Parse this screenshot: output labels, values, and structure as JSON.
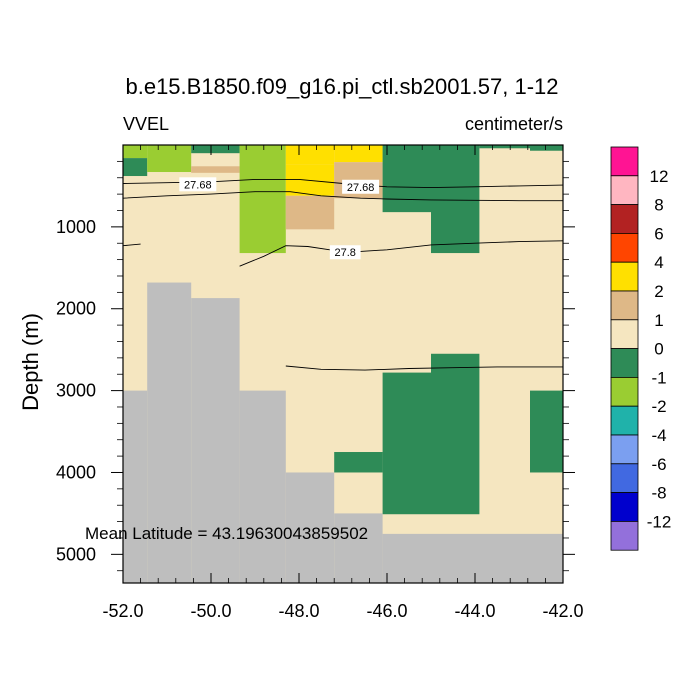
{
  "chart_data": {
    "type": "heatmap",
    "title": "b.e15.B1850.f09_g16.pi_ctl.sb2001.57, 1-12",
    "left_label": "VVEL",
    "right_label": "centimeter/s",
    "xlabel": "",
    "ylabel": "Depth (m)",
    "xlim": [
      -52.0,
      -42.0
    ],
    "ylim": [
      5350,
      0
    ],
    "x_ticks": [
      -52,
      -50,
      -48,
      -46,
      -44,
      -42
    ],
    "x_tick_labels": [
      "-52.0",
      "-50.0",
      "-48.0",
      "-46.0",
      "-44.0",
      "-42.0"
    ],
    "y_ticks": [
      1000,
      2000,
      3000,
      4000,
      5000
    ],
    "y_tick_labels": [
      "1000",
      "2000",
      "3000",
      "4000",
      "5000"
    ],
    "annotation": "Mean Latitude = 43.19630043859502",
    "colorbar": {
      "labels": [
        "12",
        "8",
        "6",
        "4",
        "2",
        "1",
        "0",
        "-1",
        "-2",
        "-4",
        "-6",
        "-8",
        "-12"
      ],
      "colors": [
        "#ff1493",
        "#ffb6c1",
        "#b22222",
        "#ff4500",
        "#ffe000",
        "#deb887",
        "#f5e6c0",
        "#2e8b57",
        "#9acd32",
        "#20b2aa",
        "#7b9ff0",
        "#4169e1",
        "#0000cd",
        "#9370db"
      ]
    },
    "colors": {
      "background": "#f5e6c0",
      "land": "#bebebe"
    },
    "land": [
      {
        "x": [
          -52.0,
          -51.45
        ],
        "top": 3000
      },
      {
        "x": [
          -51.45,
          -50.45
        ],
        "top": 1680
      },
      {
        "x": [
          -50.45,
          -49.35
        ],
        "top": 1870
      },
      {
        "x": [
          -49.35,
          -48.3
        ],
        "top": 3000
      },
      {
        "x": [
          -48.3,
          -47.2
        ],
        "top": 4000
      },
      {
        "x": [
          -47.2,
          -46.1
        ],
        "top": 4500
      },
      {
        "x": [
          -46.1,
          -42.0
        ],
        "top": 4750
      }
    ],
    "cells": [
      {
        "x": [
          -52.0,
          -51.45
        ],
        "y": [
          0,
          160
        ],
        "v": -2
      },
      {
        "x": [
          -52.0,
          -51.45
        ],
        "y": [
          160,
          380
        ],
        "v": -1
      },
      {
        "x": [
          -52.0,
          -51.45
        ],
        "y": [
          380,
          650
        ],
        "v": 0.5
      },
      {
        "x": [
          -51.45,
          -50.45
        ],
        "y": [
          0,
          330
        ],
        "v": -2
      },
      {
        "x": [
          -50.45,
          -49.35
        ],
        "y": [
          0,
          100
        ],
        "v": -1
      },
      {
        "x": [
          -50.45,
          -49.35
        ],
        "y": [
          260,
          340
        ],
        "v": 1.5
      },
      {
        "x": [
          -49.35,
          -48.3
        ],
        "y": [
          0,
          1320
        ],
        "v": -1.5
      },
      {
        "x": [
          -48.3,
          -47.2
        ],
        "y": [
          0,
          240
        ],
        "v": 3
      },
      {
        "x": [
          -48.3,
          -47.2
        ],
        "y": [
          240,
          620
        ],
        "v": 2.5
      },
      {
        "x": [
          -48.3,
          -47.2
        ],
        "y": [
          620,
          1030
        ],
        "v": 1.5
      },
      {
        "x": [
          -47.2,
          -46.1
        ],
        "y": [
          0,
          210
        ],
        "v": 2.5
      },
      {
        "x": [
          -47.2,
          -46.1
        ],
        "y": [
          210,
          650
        ],
        "v": 1.5
      },
      {
        "x": [
          -46.1,
          -45.0
        ],
        "y": [
          0,
          820
        ],
        "v": -0.5
      },
      {
        "x": [
          -45.0,
          -43.9
        ],
        "y": [
          0,
          1320
        ],
        "v": -0.5
      },
      {
        "x": [
          -43.9,
          -42.75
        ],
        "y": [
          0,
          40
        ],
        "v": -0.5
      },
      {
        "x": [
          -42.75,
          -42.0
        ],
        "y": [
          0,
          70
        ],
        "v": -0.5
      },
      {
        "x": [
          -46.1,
          -45.0
        ],
        "y": [
          2780,
          4510
        ],
        "v": -0.5
      },
      {
        "x": [
          -45.0,
          -43.9
        ],
        "y": [
          2550,
          4510
        ],
        "v": -0.5
      },
      {
        "x": [
          -47.2,
          -46.1
        ],
        "y": [
          3750,
          4000
        ],
        "v": -0.5
      },
      {
        "x": [
          -42.75,
          -42.0
        ],
        "y": [
          3000,
          4000
        ],
        "v": -0.5
      }
    ],
    "contours": [
      {
        "label": "27.68",
        "label_x": -50.3,
        "label_y": 480,
        "points": [
          [
            -52.0,
            470
          ],
          [
            -51.0,
            460
          ],
          [
            -50.0,
            450
          ],
          [
            -49.0,
            420
          ],
          [
            -48.0,
            420
          ],
          [
            -47.0,
            470
          ],
          [
            -46.0,
            510
          ],
          [
            -45.0,
            520
          ],
          [
            -44.0,
            510
          ],
          [
            -43.0,
            500
          ],
          [
            -42.0,
            490
          ]
        ]
      },
      {
        "label": "27.68",
        "label_x": -46.6,
        "label_y": 510,
        "points": [
          [
            -52.0,
            650
          ],
          [
            -51.0,
            620
          ],
          [
            -50.0,
            600
          ],
          [
            -49.0,
            570
          ],
          [
            -48.2,
            570
          ],
          [
            -47.5,
            620
          ],
          [
            -46.6,
            650
          ],
          [
            -46.0,
            660
          ],
          [
            -45.0,
            670
          ],
          [
            -44.0,
            675
          ],
          [
            -43.0,
            680
          ],
          [
            -42.0,
            680
          ]
        ]
      },
      {
        "label": "27.8",
        "label_x": -46.95,
        "label_y": 1310,
        "points": [
          [
            -52.0,
            1230
          ],
          [
            -51.6,
            1210
          ]
        ]
      },
      {
        "label": "",
        "points": [
          [
            -49.35,
            1480
          ],
          [
            -48.8,
            1360
          ],
          [
            -48.3,
            1230
          ],
          [
            -47.8,
            1240
          ],
          [
            -47.3,
            1280
          ],
          [
            -46.6,
            1300
          ],
          [
            -46.0,
            1280
          ],
          [
            -45.0,
            1220
          ],
          [
            -44.0,
            1200
          ],
          [
            -43.0,
            1180
          ],
          [
            -42.0,
            1170
          ]
        ]
      },
      {
        "label": "",
        "points": [
          [
            -48.3,
            2700
          ],
          [
            -47.5,
            2740
          ],
          [
            -46.5,
            2750
          ],
          [
            -45.5,
            2730
          ],
          [
            -44.5,
            2720
          ],
          [
            -43.5,
            2710
          ],
          [
            -42.0,
            2710
          ]
        ]
      }
    ]
  }
}
